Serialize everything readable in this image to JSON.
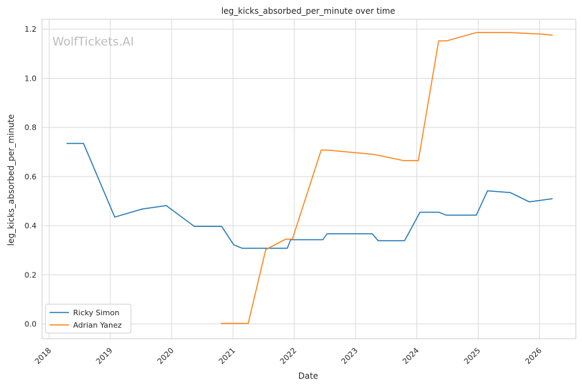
{
  "chart_data": {
    "type": "line",
    "title": "leg_kicks_absorbed_per_minute over time",
    "xlabel": "Date",
    "ylabel": "leg_kicks_absorbed_per_minute",
    "watermark": "WolfTickets.AI",
    "xlim": [
      "2017-11-20",
      "2026-08-05"
    ],
    "ylim": [
      -0.06,
      1.24
    ],
    "x_ticks": [
      "2018",
      "2019",
      "2020",
      "2021",
      "2022",
      "2023",
      "2024",
      "2025",
      "2026"
    ],
    "y_ticks": [
      "0.0",
      "0.2",
      "0.4",
      "0.6",
      "0.8",
      "1.0",
      "1.2"
    ],
    "grid": true,
    "legend_position": "lower-left",
    "series": [
      {
        "name": "Ricky Simon",
        "color": "#1f77b4",
        "points": [
          [
            "2018-04-15",
            0.735
          ],
          [
            "2018-07-25",
            0.735
          ],
          [
            "2019-01-27",
            0.435
          ],
          [
            "2019-07-10",
            0.468
          ],
          [
            "2019-11-30",
            0.482
          ],
          [
            "2020-05-15",
            0.397
          ],
          [
            "2020-10-25",
            0.397
          ],
          [
            "2021-01-05",
            0.322
          ],
          [
            "2021-02-25",
            0.308
          ],
          [
            "2021-11-20",
            0.308
          ],
          [
            "2021-12-10",
            0.343
          ],
          [
            "2022-06-20",
            0.343
          ],
          [
            "2022-07-15",
            0.367
          ],
          [
            "2023-04-10",
            0.367
          ],
          [
            "2023-05-15",
            0.339
          ],
          [
            "2023-10-20",
            0.339
          ],
          [
            "2024-01-20",
            0.455
          ],
          [
            "2024-05-10",
            0.455
          ],
          [
            "2024-06-25",
            0.443
          ],
          [
            "2024-12-20",
            0.443
          ],
          [
            "2025-02-25",
            0.542
          ],
          [
            "2025-07-10",
            0.535
          ],
          [
            "2025-11-01",
            0.497
          ],
          [
            "2026-03-20",
            0.51
          ]
        ]
      },
      {
        "name": "Adrian Yanez",
        "color": "#ff7f0e",
        "points": [
          [
            "2020-10-20",
            0.002
          ],
          [
            "2021-01-20",
            0.002
          ],
          [
            "2021-04-01",
            0.002
          ],
          [
            "2021-07-15",
            0.303
          ],
          [
            "2021-11-10",
            0.345
          ],
          [
            "2021-12-20",
            0.345
          ],
          [
            "2022-06-10",
            0.708
          ],
          [
            "2022-07-15",
            0.708
          ],
          [
            "2023-04-20",
            0.69
          ],
          [
            "2023-10-15",
            0.665
          ],
          [
            "2024-01-10",
            0.665
          ],
          [
            "2024-05-10",
            1.152
          ],
          [
            "2024-06-25",
            1.152
          ],
          [
            "2024-12-20",
            1.186
          ],
          [
            "2025-07-10",
            1.186
          ],
          [
            "2026-01-10",
            1.18
          ],
          [
            "2026-03-20",
            1.175
          ]
        ]
      }
    ]
  }
}
